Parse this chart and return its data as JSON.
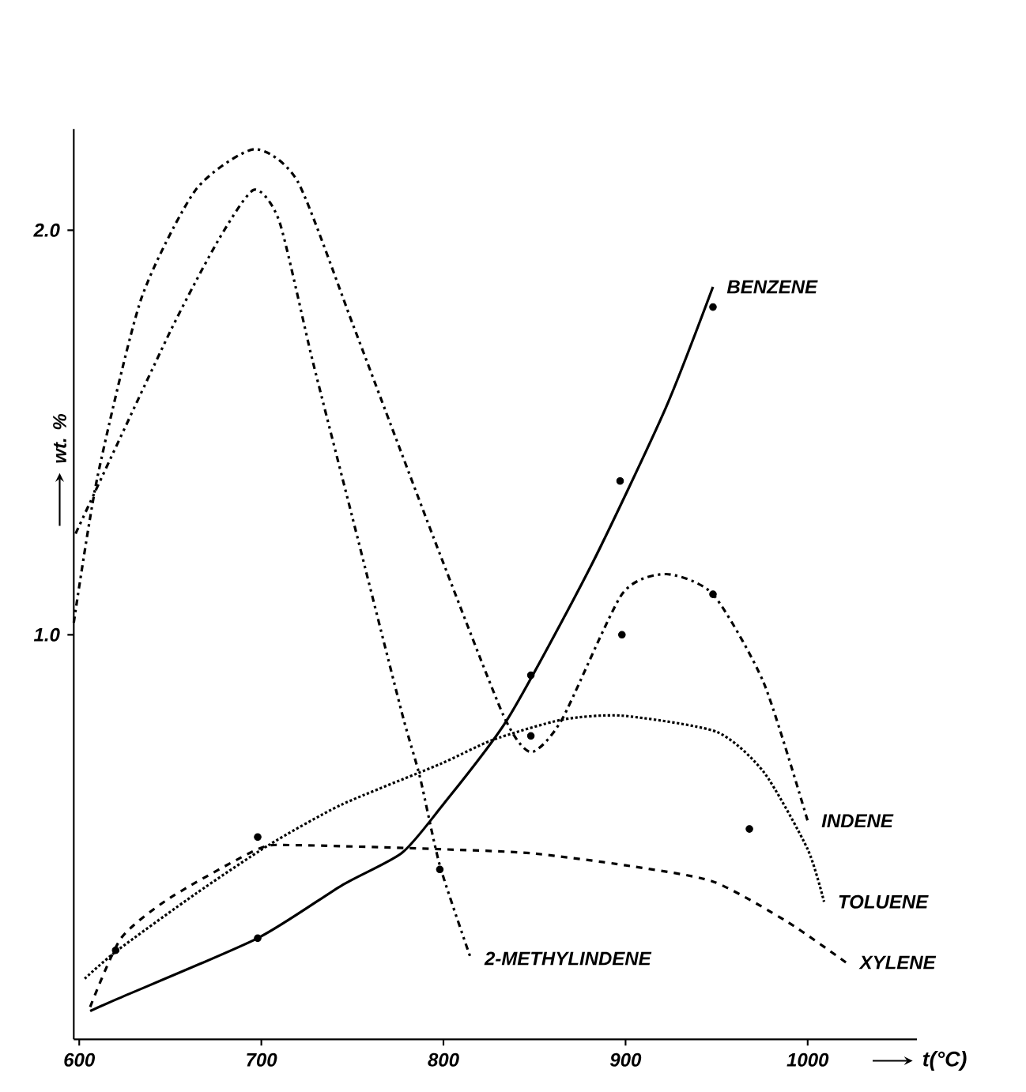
{
  "chart_data": {
    "type": "line",
    "xlabel": "t(°C)",
    "ylabel": "wt. %",
    "xlim": [
      597,
      1060
    ],
    "ylim": [
      0,
      2.25
    ],
    "xticks": [
      600,
      700,
      800,
      900,
      1000
    ],
    "yticks": [
      {
        "value": 1,
        "label": "1.0"
      },
      {
        "value": 2,
        "label": "2.0"
      }
    ],
    "grid": false,
    "series": [
      {
        "name": "BENZENE",
        "color": "#000000",
        "line_style": "solid",
        "x": [
          606,
          621,
          698,
          744,
          777,
          798,
          835,
          881,
          922,
          948
        ],
        "values": [
          0.07,
          0.1,
          0.25,
          0.38,
          0.46,
          0.57,
          0.79,
          1.17,
          1.56,
          1.86
        ]
      },
      {
        "name": "INDENE",
        "color": "#000000",
        "line_style": "dashdot",
        "x": [
          597,
          610,
          634,
          664,
          696,
          720,
          750,
          771,
          798,
          833,
          848,
          865,
          898,
          922,
          948,
          976,
          1000
        ],
        "values": [
          1.03,
          1.39,
          1.83,
          2.1,
          2.2,
          2.12,
          1.77,
          1.52,
          1.2,
          0.8,
          0.71,
          0.79,
          1.1,
          1.15,
          1.1,
          0.88,
          0.54
        ]
      },
      {
        "name": "2-METHYLINDENE",
        "color": "#000000",
        "line_style": "dashdotdot",
        "x": [
          598,
          650,
          677,
          696,
          710,
          728,
          750,
          777,
          787,
          798,
          815
        ],
        "values": [
          1.25,
          1.75,
          1.98,
          2.1,
          2.02,
          1.68,
          1.29,
          0.81,
          0.65,
          0.43,
          0.2
        ]
      },
      {
        "name": "TOLUENE",
        "color": "#000000",
        "line_style": "dotted",
        "x": [
          603,
          621,
          664,
          704,
          744,
          798,
          827,
          865,
          898,
          950,
          976,
          1000,
          1009
        ],
        "values": [
          0.15,
          0.22,
          0.36,
          0.48,
          0.58,
          0.68,
          0.74,
          0.79,
          0.8,
          0.76,
          0.66,
          0.47,
          0.34
        ]
      },
      {
        "name": "XYLENE",
        "color": "#000000",
        "line_style": "dashed",
        "x": [
          606,
          623,
          650,
          698,
          718,
          798,
          848,
          900,
          948,
          989,
          1021
        ],
        "values": [
          0.08,
          0.25,
          0.35,
          0.47,
          0.48,
          0.47,
          0.46,
          0.43,
          0.39,
          0.29,
          0.19
        ]
      },
      {
        "type": "scatter",
        "color": "#000000",
        "x": [
          620,
          698,
          698,
          798,
          848,
          848,
          897,
          898,
          948,
          948,
          968
        ],
        "values": [
          0.22,
          0.5,
          0.25,
          0.42,
          0.9,
          0.75,
          1.38,
          1.0,
          1.81,
          1.1,
          0.52
        ]
      }
    ]
  }
}
